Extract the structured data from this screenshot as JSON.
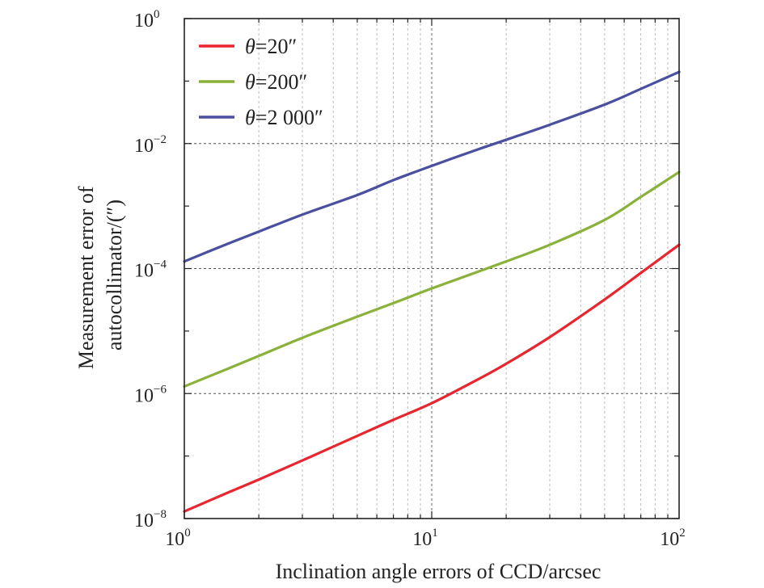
{
  "chart_data": {
    "type": "line",
    "xscale": "log",
    "yscale": "log",
    "xlim": [
      1,
      100
    ],
    "ylim": [
      1e-08,
      1
    ],
    "xlabel": "Inclination angle errors of CCD/arcsec",
    "ylabel_lines": [
      "Measurement error of",
      "autocollimator/(″)"
    ],
    "x_ticks": [
      {
        "base": "10",
        "exp": "0"
      },
      {
        "base": "10",
        "exp": "1"
      },
      {
        "base": "10",
        "exp": "2"
      }
    ],
    "y_ticks": [
      {
        "base": "10",
        "exp": "−8"
      },
      {
        "base": "10",
        "exp": "−6"
      },
      {
        "base": "10",
        "exp": "−4"
      },
      {
        "base": "10",
        "exp": "−2"
      },
      {
        "base": "10",
        "exp": "0"
      }
    ],
    "grid": true,
    "legend_position": "top-left",
    "series": [
      {
        "name_prefix": "θ",
        "name_value": "=20″",
        "color": "#e8262f",
        "x": [
          1,
          1.5,
          2,
          3,
          5,
          7,
          10,
          15,
          20,
          30,
          50,
          70,
          100
        ],
        "y": [
          1.3e-08,
          2.6e-08,
          4.2e-08,
          8.5e-08,
          2.1e-07,
          3.8e-07,
          7e-07,
          1.6e-06,
          3e-06,
          8e-06,
          3.2e-05,
          8.5e-05,
          0.00024
        ]
      },
      {
        "name_prefix": "θ",
        "name_value": "=200″",
        "color": "#8ab13a",
        "x": [
          1,
          1.5,
          2,
          3,
          5,
          7,
          10,
          15,
          20,
          30,
          50,
          70,
          100
        ],
        "y": [
          1.3e-06,
          2.5e-06,
          4e-06,
          7.8e-06,
          1.7e-05,
          2.8e-05,
          4.8e-05,
          8.6e-05,
          0.00013,
          0.00024,
          0.0006,
          0.0014,
          0.0035
        ]
      },
      {
        "name_prefix": "θ",
        "name_value": "=2 000″",
        "color": "#4a4f9f",
        "x": [
          1,
          1.5,
          2,
          3,
          5,
          7,
          10,
          15,
          20,
          30,
          50,
          70,
          100
        ],
        "y": [
          0.00013,
          0.00025,
          0.00039,
          0.00073,
          0.0015,
          0.0026,
          0.0044,
          0.0078,
          0.0115,
          0.02,
          0.042,
          0.075,
          0.14
        ]
      }
    ]
  }
}
